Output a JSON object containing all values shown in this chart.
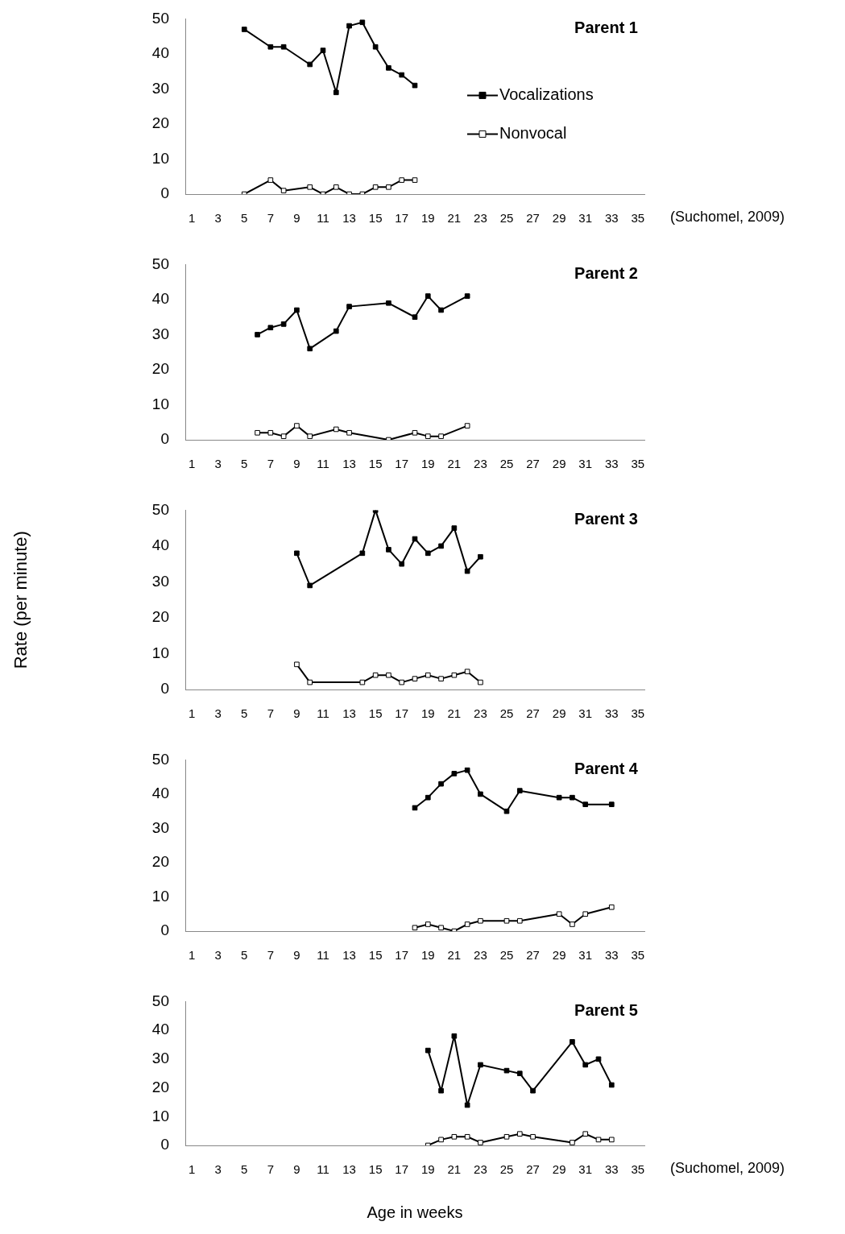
{
  "chart_data": [
    {
      "type": "line",
      "title": "Parent 1",
      "xlim": [
        0.5,
        35.5
      ],
      "xticks": [
        1,
        3,
        5,
        7,
        9,
        11,
        13,
        15,
        17,
        19,
        21,
        23,
        25,
        27,
        29,
        31,
        33,
        35
      ],
      "ylim": [
        0,
        50
      ],
      "yticks": [
        0,
        10,
        20,
        30,
        40,
        50
      ],
      "grid": false,
      "legend": "right",
      "marker": "square",
      "line_style": "solid",
      "annotations": [
        "(Suchomel, 2009)"
      ],
      "series": [
        {
          "name": "Vocalizations",
          "color": "#000000",
          "x": [
            5,
            7,
            8,
            10,
            11,
            12,
            13,
            14,
            15,
            16,
            17,
            18
          ],
          "values": [
            47,
            42,
            42,
            37,
            41,
            29,
            48,
            49,
            42,
            36,
            34,
            31
          ]
        },
        {
          "name": "Nonvocal",
          "color": "#000000",
          "x": [
            5,
            7,
            8,
            10,
            11,
            12,
            13,
            14,
            15,
            16,
            17,
            18
          ],
          "values": [
            0,
            4,
            1,
            2,
            0,
            2,
            0,
            0,
            2,
            2,
            4,
            4
          ]
        }
      ]
    },
    {
      "type": "line",
      "title": "Parent 2",
      "xlim": [
        0.5,
        35.5
      ],
      "xticks": [
        1,
        3,
        5,
        7,
        9,
        11,
        13,
        15,
        17,
        19,
        21,
        23,
        25,
        27,
        29,
        31,
        33,
        35
      ],
      "ylim": [
        0,
        50
      ],
      "yticks": [
        0,
        10,
        20,
        30,
        40,
        50
      ],
      "grid": false,
      "marker": "square",
      "line_style": "solid",
      "series": [
        {
          "color": "#000000",
          "x": [
            6,
            7,
            8,
            9,
            10,
            12,
            13,
            16,
            18,
            19,
            20,
            22
          ],
          "values": [
            30,
            32,
            33,
            37,
            26,
            31,
            38,
            39,
            35,
            41,
            37,
            41
          ]
        },
        {
          "color": "#000000",
          "x": [
            6,
            7,
            8,
            9,
            10,
            12,
            13,
            16,
            18,
            19,
            20,
            22
          ],
          "values": [
            2,
            2,
            1,
            4,
            1,
            3,
            2,
            0,
            2,
            1,
            1,
            4
          ]
        }
      ]
    },
    {
      "type": "line",
      "title": "Parent 3",
      "ylabel": "Rate (per minute)",
      "xlim": [
        0.5,
        35.5
      ],
      "xticks": [
        1,
        3,
        5,
        7,
        9,
        11,
        13,
        15,
        17,
        19,
        21,
        23,
        25,
        27,
        29,
        31,
        33,
        35
      ],
      "ylim": [
        0,
        50
      ],
      "yticks": [
        0,
        10,
        20,
        30,
        40,
        50
      ],
      "grid": false,
      "marker": "square",
      "line_style": "solid",
      "series": [
        {
          "color": "#000000",
          "x": [
            9,
            10,
            14,
            15,
            16,
            17,
            18,
            19,
            20,
            21,
            22,
            23
          ],
          "values": [
            38,
            29,
            38,
            50,
            39,
            35,
            42,
            38,
            40,
            45,
            33,
            37
          ]
        },
        {
          "color": "#000000",
          "x": [
            9,
            10,
            14,
            15,
            16,
            17,
            18,
            19,
            20,
            21,
            22,
            23
          ],
          "values": [
            7,
            2,
            2,
            4,
            4,
            2,
            3,
            4,
            3,
            4,
            5,
            2
          ]
        }
      ]
    },
    {
      "type": "line",
      "title": "Parent 4",
      "xlim": [
        0.5,
        35.5
      ],
      "xticks": [
        1,
        3,
        5,
        7,
        9,
        11,
        13,
        15,
        17,
        19,
        21,
        23,
        25,
        27,
        29,
        31,
        33,
        35
      ],
      "ylim": [
        0,
        50
      ],
      "yticks": [
        0,
        10,
        20,
        30,
        40,
        50
      ],
      "grid": false,
      "marker": "square",
      "line_style": "solid",
      "series": [
        {
          "color": "#000000",
          "x": [
            18,
            19,
            20,
            21,
            22,
            23,
            25,
            26,
            29,
            30,
            31,
            33
          ],
          "values": [
            36,
            39,
            43,
            46,
            47,
            40,
            35,
            41,
            39,
            39,
            37,
            37
          ]
        },
        {
          "color": "#000000",
          "x": [
            18,
            19,
            20,
            21,
            22,
            23,
            25,
            26,
            29,
            30,
            31,
            33
          ],
          "values": [
            1,
            2,
            1,
            0,
            2,
            3,
            3,
            3,
            5,
            2,
            5,
            7
          ]
        }
      ]
    },
    {
      "type": "line",
      "title": "Parent 5",
      "xlabel": "Age in weeks",
      "xlim": [
        0.5,
        35.5
      ],
      "xticks": [
        1,
        3,
        5,
        7,
        9,
        11,
        13,
        15,
        17,
        19,
        21,
        23,
        25,
        27,
        29,
        31,
        33,
        35
      ],
      "ylim": [
        0,
        50
      ],
      "yticks": [
        0,
        10,
        20,
        30,
        40,
        50
      ],
      "grid": false,
      "marker": "square",
      "line_style": "solid",
      "annotations": [
        "(Suchomel, 2009)"
      ],
      "series": [
        {
          "color": "#000000",
          "x": [
            19,
            20,
            21,
            22,
            23,
            25,
            26,
            27,
            30,
            31,
            32,
            33
          ],
          "values": [
            33,
            19,
            38,
            14,
            28,
            26,
            25,
            19,
            36,
            28,
            30,
            21
          ]
        },
        {
          "color": "#000000",
          "x": [
            19,
            20,
            21,
            22,
            23,
            25,
            26,
            27,
            30,
            31,
            32,
            33
          ],
          "values": [
            0,
            2,
            3,
            3,
            1,
            3,
            4,
            3,
            1,
            4,
            2,
            2
          ]
        }
      ]
    }
  ]
}
